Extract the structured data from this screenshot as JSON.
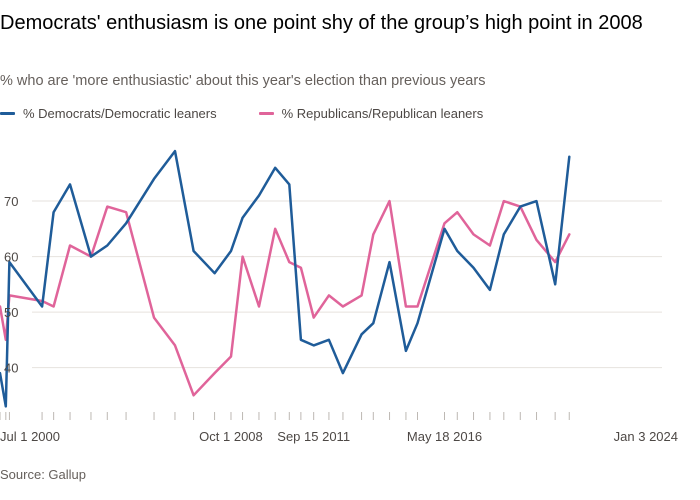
{
  "title": "Democrats' enthusiasm is one point shy of the group’s high point in 2008",
  "subtitle": "% who are 'more enthusiastic' about this year's election than previous years",
  "source": "Source: Gallup",
  "colors": {
    "democrats": "#1f5c99",
    "republicans": "#e0649a",
    "grid": "#e6e2de",
    "axis": "#bdb8b3"
  },
  "chart_data": {
    "type": "line",
    "x": [
      "2000-07-01",
      "2000-09-15",
      "2000-11-01",
      "2002-01-01",
      "2002-06-01",
      "2003-01-01",
      "2003-10-01",
      "2004-05-01",
      "2005-01-01",
      "2006-01-01",
      "2006-10-01",
      "2007-06-01",
      "2008-03-01",
      "2008-10-01",
      "2009-03-01",
      "2009-10-01",
      "2010-05-01",
      "2010-11-01",
      "2011-04-01",
      "2011-09-15",
      "2012-04-01",
      "2012-10-01",
      "2013-06-01",
      "2013-11-01",
      "2014-06-01",
      "2015-01-01",
      "2015-06-01",
      "2016-05-18",
      "2016-11-01",
      "2017-06-01",
      "2018-01-01",
      "2018-07-01",
      "2019-02-01",
      "2019-09-01",
      "2020-05-01",
      "2020-11-01",
      "2021-05-01",
      "2022-01-01",
      "2022-08-01",
      "2023-04-01",
      "2023-09-01",
      "2024-01-03"
    ],
    "series": [
      {
        "name": "% Democrats/Democratic leaners",
        "values": [
          39,
          33,
          59,
          51,
          68,
          73,
          60,
          62,
          66,
          74,
          79,
          61,
          57,
          61,
          67,
          71,
          76,
          73,
          45,
          44,
          45,
          39,
          46,
          48,
          59,
          43,
          48,
          65,
          61,
          58,
          54,
          64,
          69,
          70,
          55,
          78,
          null,
          null,
          null,
          null,
          null,
          null
        ]
      },
      {
        "name": "% Republicans/Republican leaners",
        "values": [
          51,
          45,
          53,
          52,
          51,
          62,
          60,
          69,
          68,
          49,
          44,
          35,
          39,
          42,
          60,
          51,
          65,
          59,
          58,
          49,
          53,
          51,
          53,
          64,
          70,
          51,
          51,
          66,
          68,
          64,
          62,
          70,
          69,
          63,
          59,
          64,
          null,
          null,
          null,
          null,
          null,
          null
        ]
      }
    ],
    "xticks": [
      "Jul 1 2000",
      "Oct 1 2008",
      "Sep 15 2011",
      "May 18 2016",
      "Jan 3 2024"
    ],
    "yticks": [
      40,
      50,
      60,
      70
    ],
    "ylim": [
      32,
      81
    ],
    "grid": true,
    "legend": "top-left"
  }
}
